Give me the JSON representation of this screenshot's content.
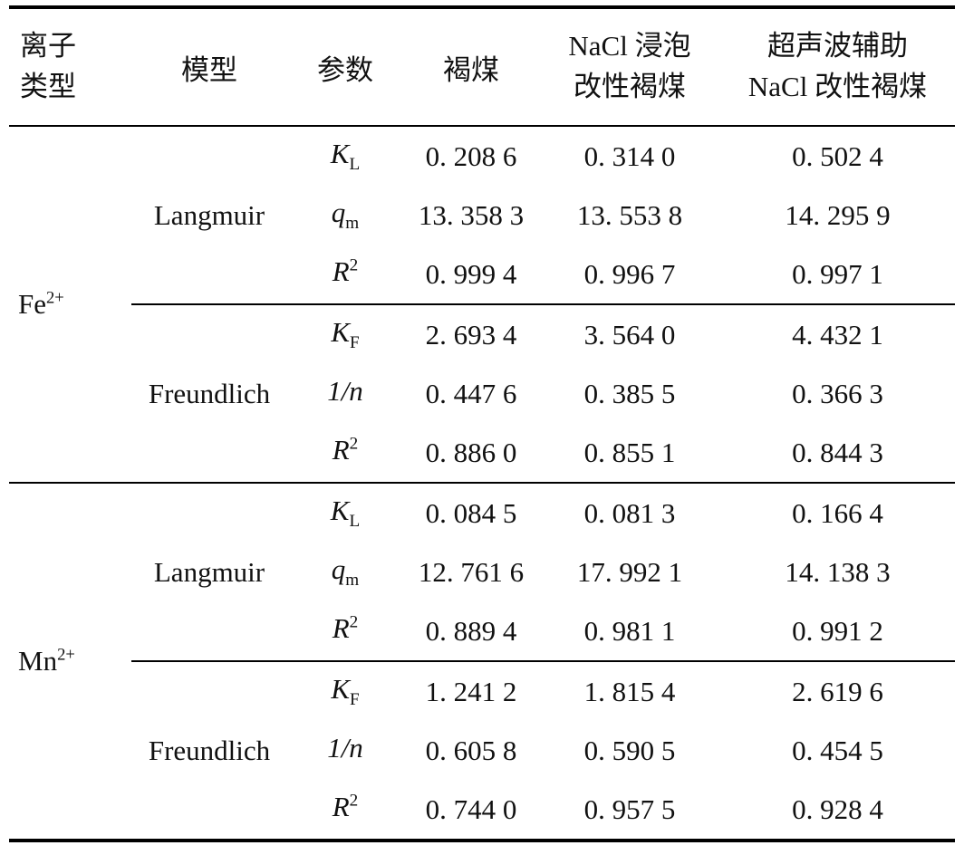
{
  "table": {
    "header": {
      "ion_line1": "离子",
      "ion_line2": "类型",
      "model": "模型",
      "param": "参数",
      "lignite": "褐煤",
      "nacl_line1": "NaCl 浸泡",
      "nacl_line2": "改性褐煤",
      "ultra_line1": "超声波辅助",
      "ultra_line2": "NaCl 改性褐煤"
    },
    "sections": [
      {
        "ion_base": "Fe",
        "ion_sup": "2+",
        "models": [
          {
            "name": "Langmuir",
            "rows": [
              {
                "p": "K",
                "ps": "L",
                "v": [
                  "0. 208 6",
                  "0. 314 0",
                  "0. 502 4"
                ]
              },
              {
                "p": "q",
                "ps": "m",
                "v": [
                  "13. 358 3",
                  "13. 553 8",
                  "14. 295 9"
                ]
              },
              {
                "p": "R",
                "pu": "2",
                "v": [
                  "0. 999 4",
                  "0. 996 7",
                  "0. 997 1"
                ]
              }
            ]
          },
          {
            "name": "Freundlich",
            "rows": [
              {
                "p": "K",
                "ps": "F",
                "v": [
                  "2. 693 4",
                  "3. 564 0",
                  "4. 432 1"
                ]
              },
              {
                "p": "1/n",
                "v": [
                  "0. 447 6",
                  "0. 385 5",
                  "0. 366 3"
                ]
              },
              {
                "p": "R",
                "pu": "2",
                "v": [
                  "0. 886 0",
                  "0. 855 1",
                  "0. 844 3"
                ]
              }
            ]
          }
        ]
      },
      {
        "ion_base": "Mn",
        "ion_sup": "2+",
        "models": [
          {
            "name": "Langmuir",
            "rows": [
              {
                "p": "K",
                "ps": "L",
                "v": [
                  "0. 084 5",
                  "0. 081 3",
                  "0. 166 4"
                ]
              },
              {
                "p": "q",
                "ps": "m",
                "v": [
                  "12. 761 6",
                  "17. 992 1",
                  "14. 138 3"
                ]
              },
              {
                "p": "R",
                "pu": "2",
                "v": [
                  "0. 889 4",
                  "0. 981 1",
                  "0. 991 2"
                ]
              }
            ]
          },
          {
            "name": "Freundlich",
            "rows": [
              {
                "p": "K",
                "ps": "F",
                "v": [
                  "1. 241 2",
                  "1. 815 4",
                  "2. 619 6"
                ]
              },
              {
                "p": "1/n",
                "v": [
                  "0. 605 8",
                  "0. 590 5",
                  "0. 454 5"
                ]
              },
              {
                "p": "R",
                "pu": "2",
                "v": [
                  "0. 744 0",
                  "0. 957 5",
                  "0. 928 4"
                ]
              }
            ]
          }
        ]
      }
    ]
  },
  "colors": {
    "text": "#111111",
    "rule": "#000000",
    "background": "#ffffff"
  }
}
